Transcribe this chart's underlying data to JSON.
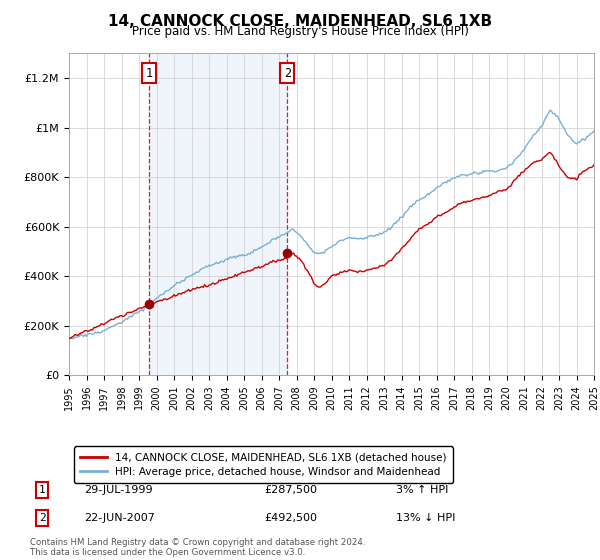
{
  "title": "14, CANNOCK CLOSE, MAIDENHEAD, SL6 1XB",
  "subtitle": "Price paid vs. HM Land Registry's House Price Index (HPI)",
  "property_label": "14, CANNOCK CLOSE, MAIDENHEAD, SL6 1XB (detached house)",
  "hpi_label": "HPI: Average price, detached house, Windsor and Maidenhead",
  "footnote": "Contains HM Land Registry data © Crown copyright and database right 2024.\nThis data is licensed under the Open Government Licence v3.0.",
  "sale1_date": "29-JUL-1999",
  "sale1_price": "£287,500",
  "sale1_hpi": "3% ↑ HPI",
  "sale1_year": 1999.58,
  "sale1_value": 287500,
  "sale2_date": "22-JUN-2007",
  "sale2_price": "£492,500",
  "sale2_hpi": "13% ↓ HPI",
  "sale2_year": 2007.47,
  "sale2_value": 492500,
  "property_color": "#cc0000",
  "hpi_color": "#7ab0d4",
  "vline_color": "#cc0000",
  "dot_color": "#990000",
  "shade_color": "#ddeeff",
  "ylim": [
    0,
    1300000
  ],
  "yticks": [
    0,
    200000,
    400000,
    600000,
    800000,
    1000000,
    1200000
  ],
  "ytick_labels": [
    "£0",
    "£200K",
    "£400K",
    "£600K",
    "£800K",
    "£1M",
    "£1.2M"
  ],
  "year_start": 1995,
  "year_end": 2025
}
